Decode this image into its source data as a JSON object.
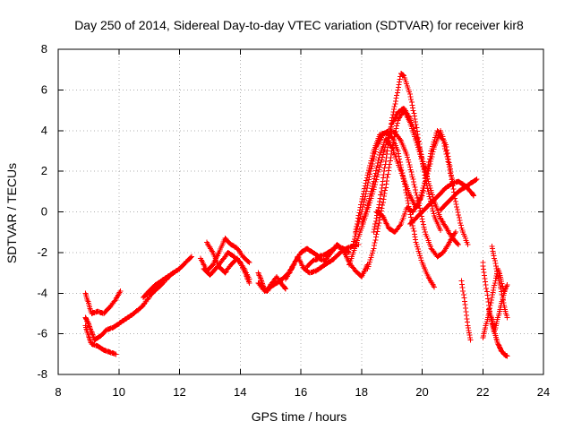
{
  "chart_data": {
    "type": "scatter",
    "title": "Day 250 of 2014, Sidereal Day-to-day VTEC variation (SDTVAR) for receiver kir8",
    "xlabel": "GPS time / hours",
    "ylabel": "SDTVAR / TECUs",
    "xlim": [
      8,
      24
    ],
    "ylim": [
      -8,
      8
    ],
    "xticks": [
      "8",
      "10",
      "12",
      "14",
      "16",
      "18",
      "20",
      "22",
      "24"
    ],
    "yticks": [
      "8",
      "6",
      "4",
      "2",
      "0",
      "-2",
      "-4",
      "-6",
      "-8"
    ],
    "grid": true,
    "marker": "plus",
    "series": [
      {
        "name": "SDTVAR",
        "color": "#ff0000",
        "segments": [
          {
            "x": [
              8.9,
              9.0,
              9.1,
              9.3,
              9.5,
              9.7,
              9.9,
              10.05
            ],
            "y": [
              -4.0,
              -4.5,
              -5.0,
              -4.9,
              -5.0,
              -4.7,
              -4.3,
              -3.9
            ]
          },
          {
            "x": [
              8.9,
              9.0,
              9.1,
              9.3,
              9.5,
              9.7,
              9.9
            ],
            "y": [
              -5.6,
              -6.1,
              -6.5,
              -6.6,
              -6.8,
              -6.9,
              -7.0
            ]
          },
          {
            "x": [
              8.9,
              9.0,
              9.1,
              9.2,
              9.4,
              9.6,
              9.8,
              10.0,
              10.2,
              10.5,
              10.8,
              11.1,
              11.4,
              11.7,
              12.0,
              12.2,
              12.4
            ],
            "y": [
              -5.2,
              -5.5,
              -5.9,
              -6.3,
              -6.1,
              -5.8,
              -5.7,
              -5.5,
              -5.3,
              -5.0,
              -4.6,
              -4.0,
              -3.6,
              -3.1,
              -2.8,
              -2.5,
              -2.2
            ]
          },
          {
            "x": [
              10.8,
              11.0,
              11.2,
              11.5,
              11.8,
              12.0,
              12.2,
              12.4
            ],
            "y": [
              -4.2,
              -3.9,
              -3.6,
              -3.3,
              -3.0,
              -2.8,
              -2.5,
              -2.2
            ]
          },
          {
            "x": [
              12.7,
              12.9,
              13.1,
              13.3,
              13.5,
              13.7,
              13.9,
              14.1,
              14.3
            ],
            "y": [
              -2.3,
              -2.9,
              -2.6,
              -2.0,
              -1.3,
              -1.6,
              -1.8,
              -2.2,
              -2.5
            ]
          },
          {
            "x": [
              12.9,
              13.1,
              13.3,
              13.5,
              13.7,
              13.9,
              14.1,
              14.3
            ],
            "y": [
              -1.5,
              -2.0,
              -2.7,
              -3.0,
              -2.6,
              -2.3,
              -2.7,
              -3.3
            ]
          },
          {
            "x": [
              12.8,
              13.0,
              13.2,
              13.4,
              13.6,
              13.8,
              14.0,
              14.2,
              14.3
            ],
            "y": [
              -2.8,
              -3.1,
              -2.8,
              -2.4,
              -2.0,
              -2.2,
              -2.5,
              -3.1,
              -3.5
            ]
          },
          {
            "x": [
              14.6,
              14.7,
              14.8,
              14.9,
              15.0,
              15.2,
              15.4,
              15.5
            ],
            "y": [
              -3.0,
              -3.4,
              -3.8,
              -3.9,
              -3.6,
              -3.2,
              -3.6,
              -3.8
            ]
          },
          {
            "x": [
              14.6,
              14.8,
              15.0,
              15.2,
              15.4,
              15.6,
              15.8,
              16.0,
              16.2,
              16.4,
              16.6,
              16.8,
              17.0,
              17.2,
              17.4,
              17.6
            ],
            "y": [
              -3.5,
              -3.9,
              -3.7,
              -3.5,
              -3.3,
              -3.0,
              -2.5,
              -2.0,
              -1.8,
              -2.0,
              -2.2,
              -2.1,
              -1.9,
              -1.7,
              -1.8,
              -2.0
            ]
          },
          {
            "x": [
              15.5,
              15.7,
              15.9,
              16.1,
              16.3,
              16.5,
              16.7,
              16.9,
              17.1,
              17.3,
              17.5,
              17.7,
              17.9
            ],
            "y": [
              -3.3,
              -2.8,
              -2.2,
              -2.8,
              -3.0,
              -2.9,
              -2.7,
              -2.5,
              -2.3,
              -2.0,
              -1.8,
              -1.7,
              -1.6
            ]
          },
          {
            "x": [
              16.2,
              16.4,
              16.6,
              16.8,
              17.0,
              17.2,
              17.4,
              17.6,
              17.8,
              18.0,
              18.2
            ],
            "y": [
              -2.7,
              -2.4,
              -2.3,
              -2.4,
              -2.0,
              -1.6,
              -1.9,
              -2.5,
              -2.9,
              -3.2,
              -2.6
            ]
          },
          {
            "x": [
              17.8,
              18.0,
              18.2,
              18.4,
              18.6,
              18.8,
              19.0,
              19.2,
              19.4,
              19.6,
              19.8,
              20.0,
              20.2,
              20.4
            ],
            "y": [
              -1.0,
              0.5,
              1.8,
              3.0,
              3.8,
              3.9,
              3.7,
              3.0,
              1.5,
              0.0,
              -1.5,
              -2.5,
              -3.2,
              -3.7
            ]
          },
          {
            "x": [
              17.7,
              17.9,
              18.1,
              18.3,
              18.5,
              18.7,
              18.9,
              19.1,
              19.3,
              19.5,
              19.7,
              19.9,
              20.1,
              20.3,
              20.5,
              20.7,
              20.9,
              21.1
            ],
            "y": [
              -1.7,
              -0.6,
              0.6,
              2.0,
              3.2,
              3.8,
              4.0,
              3.9,
              3.5,
              2.8,
              1.6,
              0.3,
              -1.0,
              -1.8,
              -2.2,
              -2.0,
              -1.5,
              -1.0
            ]
          },
          {
            "x": [
              18.2,
              18.4,
              18.6,
              18.8,
              19.0,
              19.2,
              19.4,
              19.6,
              19.8,
              20.0,
              20.2,
              20.4,
              20.6,
              20.8,
              21.0,
              21.2
            ],
            "y": [
              -2.8,
              -1.8,
              -0.4,
              1.2,
              3.0,
              4.5,
              5.0,
              4.4,
              3.5,
              2.5,
              1.5,
              0.5,
              -0.3,
              -0.8,
              -1.3,
              -1.6
            ]
          },
          {
            "x": [
              17.6,
              17.8,
              18.0,
              18.2,
              18.4,
              18.6,
              18.8,
              19.0,
              19.2,
              19.4,
              19.6,
              19.8,
              20.0,
              20.2
            ],
            "y": [
              -2.6,
              -1.7,
              -0.8,
              0.1,
              1.1,
              2.2,
              3.3,
              4.3,
              4.9,
              5.1,
              4.6,
              3.8,
              2.6,
              1.5
            ]
          },
          {
            "x": [
              18.4,
              18.6,
              18.8,
              19.0,
              19.2,
              19.3,
              19.4,
              19.6,
              19.8,
              20.0,
              20.2,
              20.4,
              20.6
            ],
            "y": [
              -1.0,
              0.5,
              2.5,
              4.5,
              6.0,
              6.8,
              6.7,
              5.8,
              4.3,
              2.5,
              1.0,
              -0.2,
              -0.9
            ]
          },
          {
            "x": [
              18.0,
              18.2,
              18.4,
              18.6,
              18.8,
              19.0,
              19.2,
              19.4,
              19.6,
              19.8,
              20.0,
              20.2,
              20.4,
              20.6,
              20.8,
              21.0
            ],
            "y": [
              -0.6,
              0.3,
              1.5,
              2.8,
              3.6,
              3.2,
              2.4,
              1.6,
              0.8,
              0.2,
              0.8,
              2.0,
              3.2,
              4.0,
              3.2,
              1.5
            ]
          },
          {
            "x": [
              18.5,
              18.7,
              18.9,
              19.1,
              19.3,
              19.5,
              19.7,
              19.9,
              20.1,
              20.3,
              20.5,
              20.7,
              20.9,
              21.1,
              21.3,
              21.5
            ],
            "y": [
              0.0,
              -0.2,
              -0.8,
              -1.0,
              -0.6,
              0.2,
              0.0,
              0.5,
              1.5,
              3.0,
              4.0,
              3.5,
              2.2,
              0.5,
              -0.8,
              -1.6
            ]
          },
          {
            "x": [
              19.6,
              19.8,
              20.0,
              20.2,
              20.4,
              20.6,
              20.8,
              21.0,
              21.2,
              21.4,
              21.6,
              21.7
            ],
            "y": [
              -0.6,
              -0.3,
              0.0,
              0.3,
              0.6,
              0.9,
              1.2,
              1.4,
              1.5,
              1.3,
              1.0,
              0.8
            ]
          },
          {
            "x": [
              20.6,
              20.8,
              21.0,
              21.2,
              21.4,
              21.6,
              21.8
            ],
            "y": [
              0.1,
              0.4,
              0.7,
              1.0,
              1.2,
              1.4,
              1.6
            ]
          },
          {
            "x": [
              21.3,
              21.4,
              21.5,
              21.6
            ],
            "y": [
              -3.4,
              -4.4,
              -5.6,
              -6.3
            ]
          },
          {
            "x": [
              22.0,
              22.1,
              22.2,
              22.3,
              22.4,
              22.5,
              22.6,
              22.7,
              22.8
            ],
            "y": [
              -2.5,
              -3.6,
              -4.6,
              -5.5,
              -6.0,
              -6.5,
              -6.8,
              -7.0,
              -7.1
            ]
          },
          {
            "x": [
              22.0,
              22.1,
              22.2,
              22.3,
              22.4,
              22.5,
              22.6,
              22.7
            ],
            "y": [
              -6.2,
              -5.6,
              -5.0,
              -4.2,
              -3.5,
              -2.8,
              -3.3,
              -4.0
            ]
          },
          {
            "x": [
              22.3,
              22.4,
              22.5,
              22.6,
              22.7,
              22.8
            ],
            "y": [
              -1.7,
              -2.4,
              -3.2,
              -3.8,
              -4.6,
              -5.2
            ]
          },
          {
            "x": [
              22.2,
              22.3,
              22.4,
              22.5,
              22.6,
              22.7,
              22.8
            ],
            "y": [
              -4.8,
              -5.3,
              -5.8,
              -5.2,
              -4.6,
              -4.0,
              -3.6
            ]
          }
        ]
      }
    ]
  }
}
